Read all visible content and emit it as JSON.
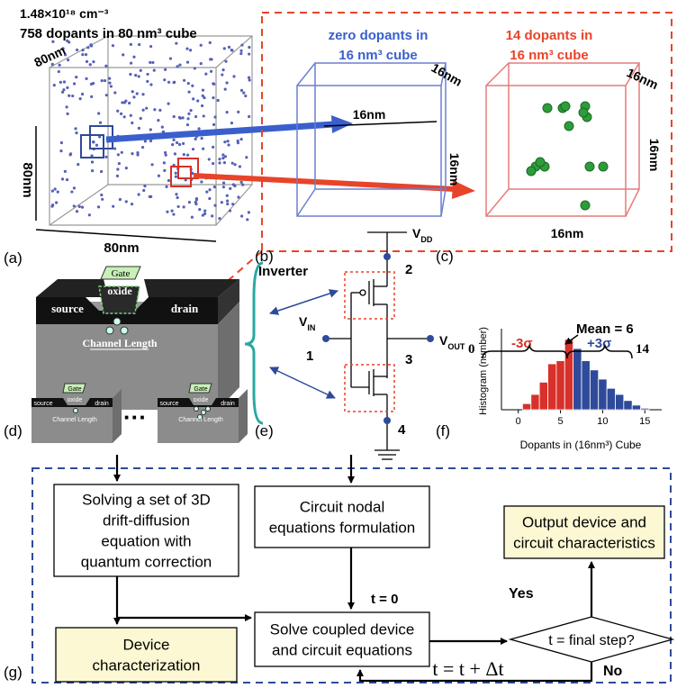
{
  "panel_labels": [
    "(a)",
    "(b)",
    "(c)",
    "(d)",
    "(e)",
    "(f)",
    "(g)"
  ],
  "panel_a": {
    "concentration": "1.48×10¹⁸ cm⁻³",
    "dopant_count": "758 dopants in 80 nm³ cube",
    "edge_labels": [
      "80nm",
      "80nm",
      "80nm"
    ]
  },
  "panel_b": {
    "title_lines": [
      "zero dopants in",
      "16 nm³ cube"
    ],
    "edge_labels": [
      "16nm",
      "16nm",
      "16nm"
    ]
  },
  "panel_c": {
    "title_lines": [
      "14 dopants in",
      "16 nm³ cube"
    ],
    "edge_labels": [
      "16nm",
      "16nm",
      "16nm"
    ]
  },
  "panel_d": {
    "gate": "Gate",
    "oxide": "oxide",
    "source": "source",
    "drain": "drain",
    "channel": "Channel Length",
    "ellipsis": "···"
  },
  "panel_e": {
    "title": "Inverter",
    "vdd": {
      "main": "V",
      "sub": "DD"
    },
    "vin": {
      "main": "V",
      "sub": "IN"
    },
    "vout": {
      "main": "V",
      "sub": "OUT"
    },
    "nodes": [
      "1",
      "2",
      "3",
      "4"
    ]
  },
  "chart_data": {
    "type": "bar",
    "x_label": "Dopants in (16nm³) Cube",
    "y_label": "Histogram (number)",
    "mean_label": "Mean = 6",
    "range_labels": [
      "0",
      "-3σ",
      "+3σ",
      "14"
    ],
    "x": [
      1,
      2,
      3,
      4,
      5,
      6,
      7,
      8,
      9,
      10,
      11,
      12,
      13,
      14,
      15
    ],
    "values": [
      2,
      5,
      9,
      15,
      16,
      23,
      20,
      16,
      13,
      10,
      7,
      5,
      3,
      1.5,
      0.5
    ],
    "colors": [
      "#d8302a",
      "#d8302a",
      "#d8302a",
      "#d8302a",
      "#d8302a",
      "#d8302a",
      "#2f4a9a",
      "#2f4a9a",
      "#2f4a9a",
      "#2f4a9a",
      "#2f4a9a",
      "#2f4a9a",
      "#2f4a9a",
      "#2f4a9a",
      "#2f4a9a"
    ],
    "xlim": [
      -2,
      17
    ],
    "xticks": [
      0,
      5,
      10,
      15
    ],
    "ylim": [
      0,
      25
    ]
  },
  "flowchart": {
    "boxes": [
      {
        "lines": [
          "Solving a set of 3D",
          "drift-diffusion",
          "equation with",
          "quantum correction"
        ]
      },
      {
        "lines": [
          "Device",
          "characterization"
        ]
      },
      {
        "lines": [
          "Circuit nodal",
          "equations formulation"
        ]
      },
      {
        "lines": [
          "Solve coupled device",
          "and circuit equations"
        ]
      },
      {
        "lines": [
          "Output device and",
          "circuit characteristics"
        ]
      }
    ],
    "decision": "t = final step?",
    "init": "t = 0",
    "yes": "Yes",
    "no": "No",
    "step": "t = t + Δt"
  }
}
